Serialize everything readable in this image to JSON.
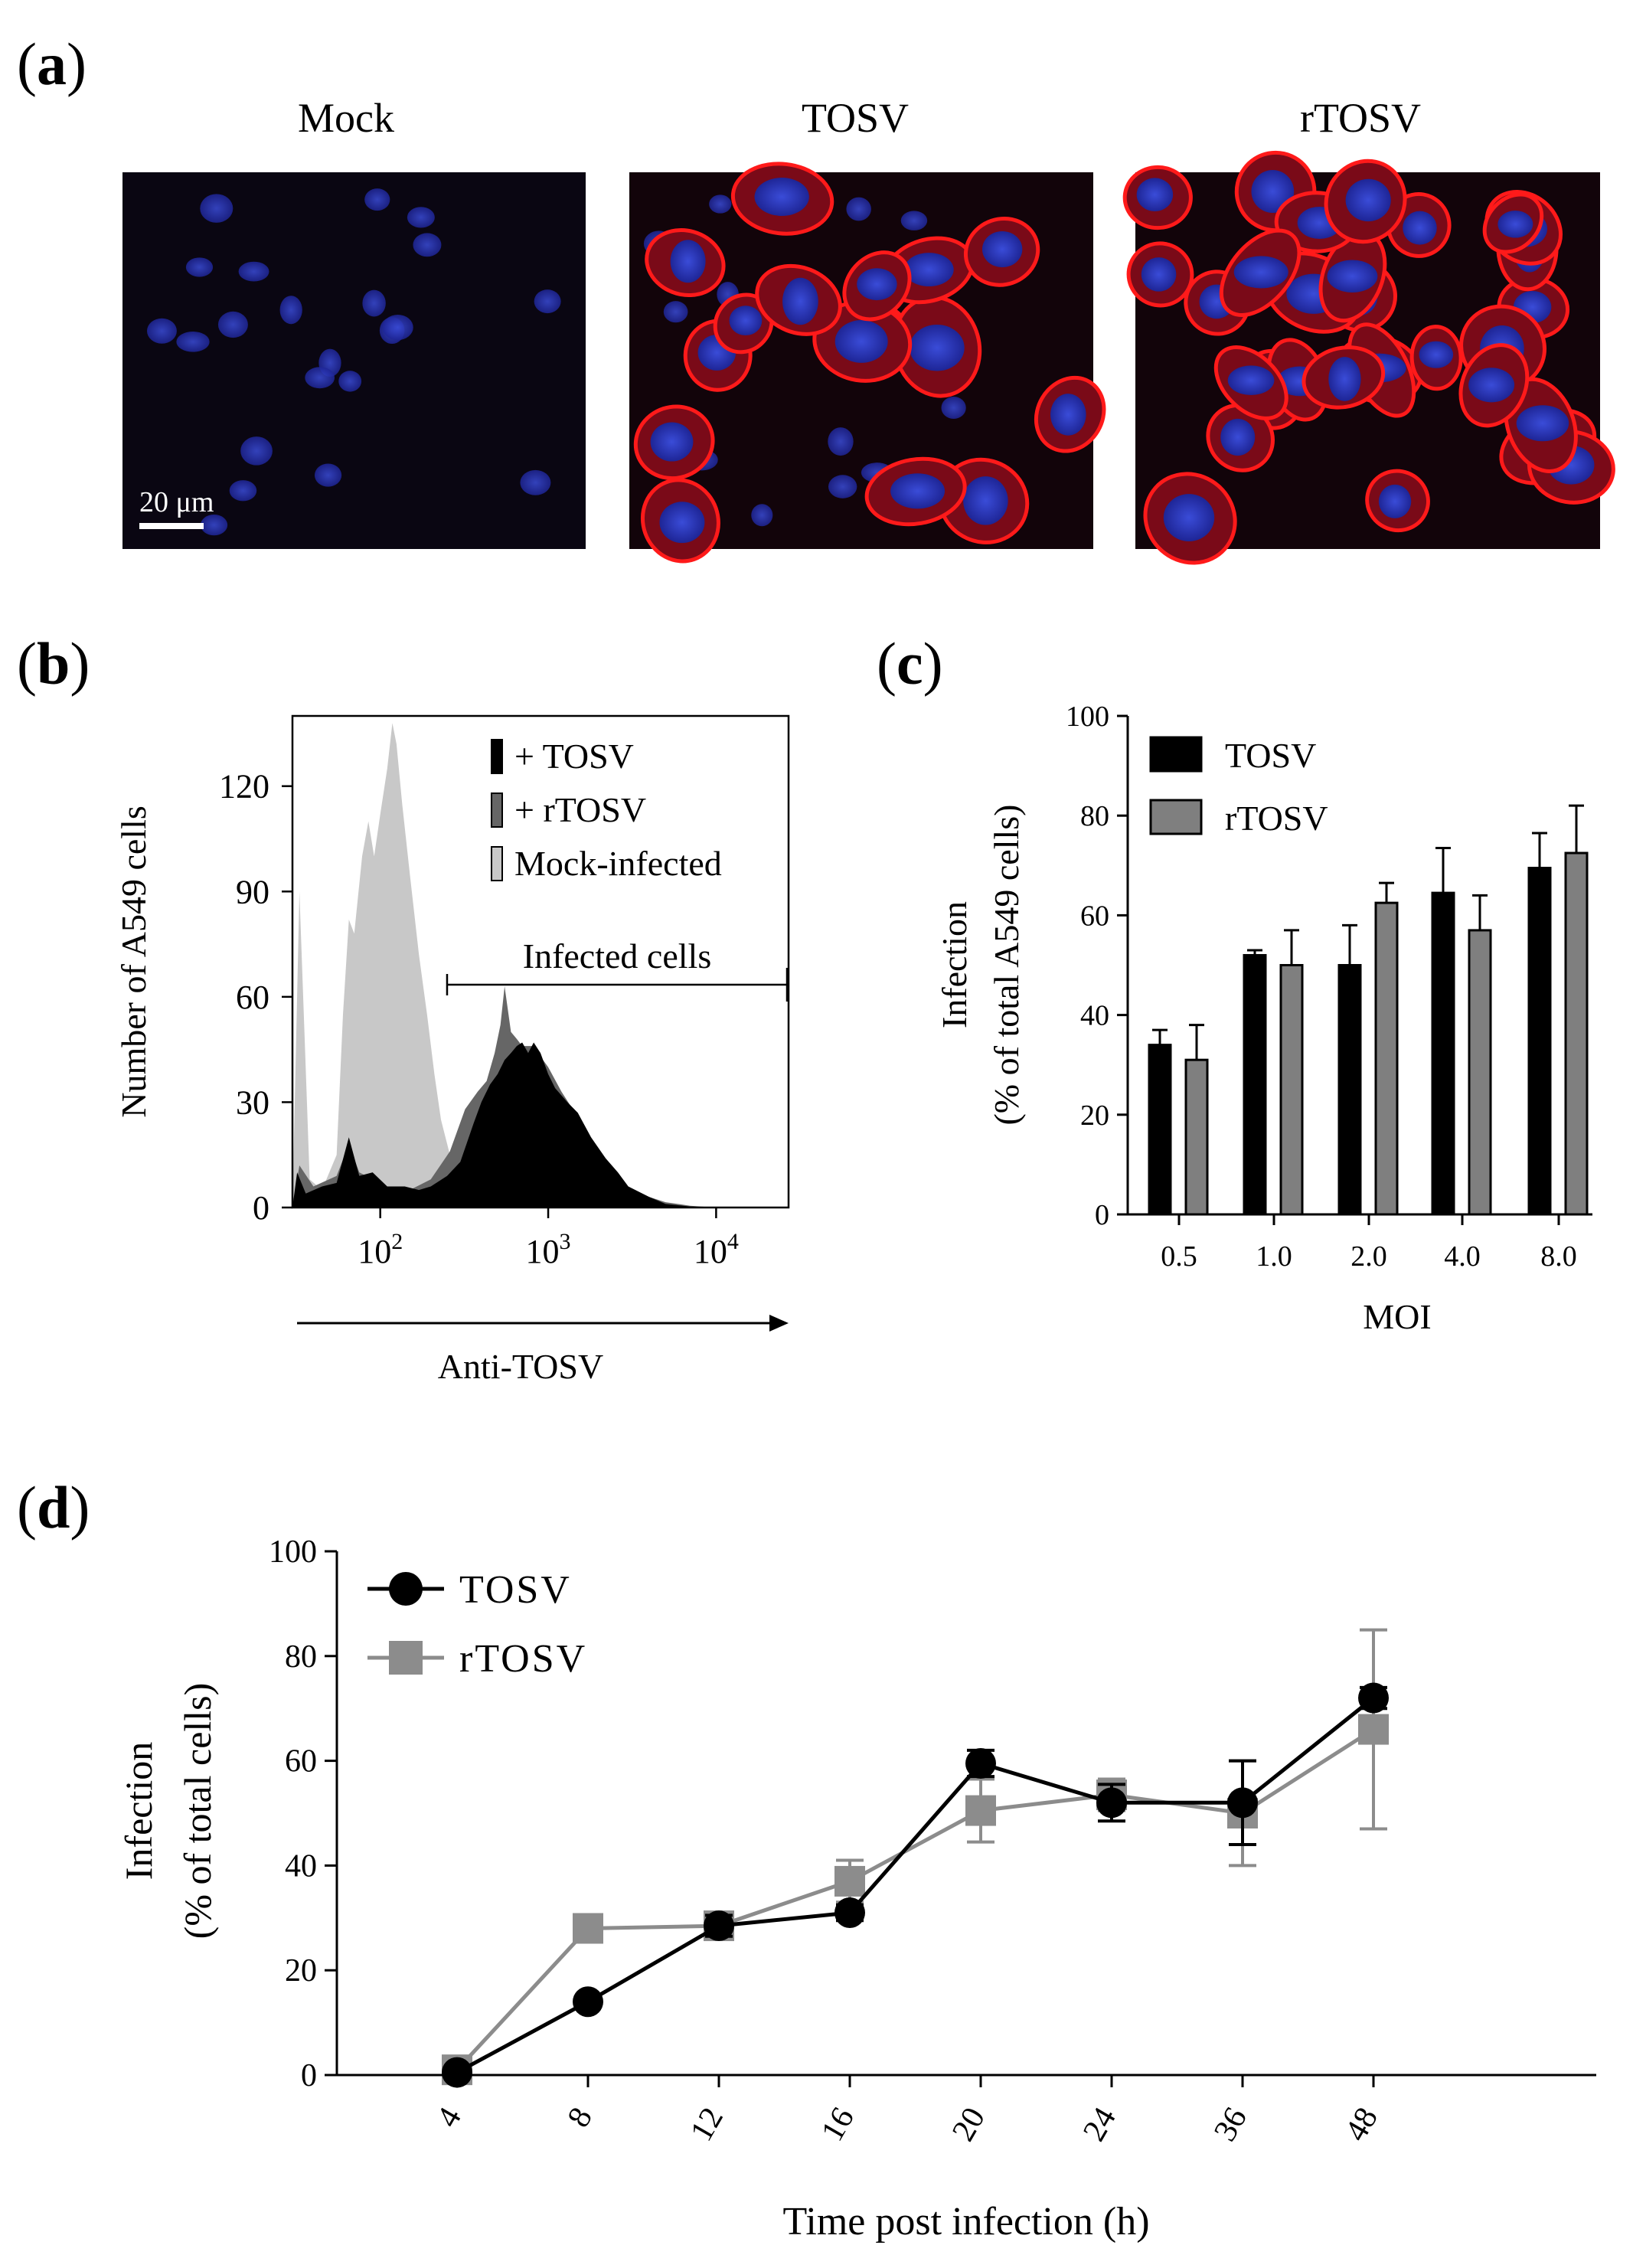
{
  "panel_a": {
    "label": "a",
    "titles": [
      "Mock",
      "TOSV",
      "rTOSV"
    ],
    "scale_bar": "20 μm"
  },
  "chart_data": [
    {
      "panel": "b",
      "type": "area",
      "title": "",
      "xlabel": "Anti-TOSV",
      "ylabel": "Number of A549 cells",
      "x_scale": "log",
      "xlim": [
        30,
        27000
      ],
      "ylim": [
        0,
        140
      ],
      "y_ticks": [
        0,
        30,
        60,
        90,
        120
      ],
      "x_ticks": [
        {
          "value": 100,
          "base": "10",
          "exp": "2"
        },
        {
          "value": 1000,
          "base": "10",
          "exp": "3"
        },
        {
          "value": 10000,
          "base": "10",
          "exp": "4"
        }
      ],
      "gate_label": "Infected cells",
      "gate_range": [
        250,
        27000
      ],
      "legend": [
        "+ TOSV",
        "+ rTOSV",
        "Mock-infected"
      ],
      "legend_position": "top-right",
      "series": [
        {
          "name": "Mock-infected",
          "color": "#c8c8c8",
          "points": [
            [
              30,
              0
            ],
            [
              33,
              90
            ],
            [
              38,
              8
            ],
            [
              45,
              5
            ],
            [
              55,
              15
            ],
            [
              60,
              55
            ],
            [
              65,
              82
            ],
            [
              70,
              78
            ],
            [
              78,
              100
            ],
            [
              85,
              110
            ],
            [
              92,
              100
            ],
            [
              100,
              112
            ],
            [
              110,
              125
            ],
            [
              118,
              138
            ],
            [
              125,
              132
            ],
            [
              135,
              115
            ],
            [
              150,
              95
            ],
            [
              170,
              72
            ],
            [
              190,
              55
            ],
            [
              210,
              38
            ],
            [
              230,
              25
            ],
            [
              260,
              15
            ],
            [
              300,
              9
            ],
            [
              350,
              6
            ],
            [
              400,
              4
            ],
            [
              500,
              2
            ],
            [
              700,
              0.5
            ],
            [
              1000,
              0
            ]
          ]
        },
        {
          "name": "+ rTOSV",
          "color": "#666666",
          "points": [
            [
              30,
              0
            ],
            [
              33,
              12
            ],
            [
              40,
              6
            ],
            [
              55,
              9
            ],
            [
              65,
              18
            ],
            [
              75,
              10
            ],
            [
              90,
              8
            ],
            [
              110,
              5
            ],
            [
              150,
              5
            ],
            [
              200,
              8
            ],
            [
              260,
              16
            ],
            [
              320,
              28
            ],
            [
              380,
              33
            ],
            [
              430,
              36
            ],
            [
              480,
              44
            ],
            [
              520,
              52
            ],
            [
              550,
              63
            ],
            [
              600,
              50
            ],
            [
              650,
              48
            ],
            [
              700,
              46
            ],
            [
              800,
              46
            ],
            [
              900,
              43
            ],
            [
              1000,
              40
            ],
            [
              1200,
              33
            ],
            [
              1400,
              28
            ],
            [
              1700,
              20
            ],
            [
              2000,
              14
            ],
            [
              2500,
              8
            ],
            [
              3000,
              5
            ],
            [
              4000,
              3
            ],
            [
              5000,
              1.5
            ],
            [
              7000,
              0.5
            ],
            [
              10000,
              0
            ]
          ]
        },
        {
          "name": "+ TOSV",
          "color": "#000000",
          "points": [
            [
              30,
              0
            ],
            [
              32,
              10
            ],
            [
              36,
              4
            ],
            [
              45,
              6
            ],
            [
              55,
              7
            ],
            [
              65,
              20
            ],
            [
              75,
              9
            ],
            [
              90,
              10
            ],
            [
              110,
              6
            ],
            [
              140,
              6
            ],
            [
              170,
              5
            ],
            [
              200,
              6
            ],
            [
              250,
              9
            ],
            [
              300,
              13
            ],
            [
              360,
              24
            ],
            [
              400,
              30
            ],
            [
              450,
              35
            ],
            [
              500,
              38
            ],
            [
              550,
              42
            ],
            [
              600,
              44
            ],
            [
              650,
              46
            ],
            [
              700,
              47
            ],
            [
              760,
              44
            ],
            [
              820,
              47
            ],
            [
              900,
              44
            ],
            [
              1000,
              38
            ],
            [
              1100,
              34
            ],
            [
              1300,
              30
            ],
            [
              1500,
              27
            ],
            [
              1800,
              20
            ],
            [
              2200,
              14
            ],
            [
              2600,
              10
            ],
            [
              3000,
              6
            ],
            [
              4000,
              3
            ],
            [
              5000,
              1
            ],
            [
              7000,
              0.3
            ],
            [
              10000,
              0
            ]
          ]
        }
      ]
    },
    {
      "panel": "c",
      "type": "bar",
      "title": "",
      "xlabel": "MOI",
      "ylabel": [
        "Infection",
        "(% of total A549 cells)"
      ],
      "ylim": [
        0,
        100
      ],
      "y_ticks": [
        0,
        20,
        40,
        60,
        80,
        100
      ],
      "categories": [
        "0.5",
        "1.0",
        "2.0",
        "4.0",
        "8.0"
      ],
      "legend_position": "top-left",
      "series": [
        {
          "name": "TOSV",
          "color": "#000000",
          "values": [
            34,
            52,
            50,
            64.5,
            69.5
          ],
          "errors": [
            3,
            1,
            8,
            9,
            7
          ]
        },
        {
          "name": "rTOSV",
          "color": "#7f7f7f",
          "values": [
            31,
            50,
            62.5,
            57,
            72.5
          ],
          "errors": [
            7,
            7,
            4,
            7,
            9.5
          ]
        }
      ]
    },
    {
      "panel": "d",
      "type": "line",
      "title": "",
      "xlabel": "Time post infection (h)",
      "ylabel": [
        "Infection",
        "(% of total cells)"
      ],
      "ylim": [
        0,
        100
      ],
      "y_ticks": [
        0,
        20,
        40,
        60,
        80,
        100
      ],
      "categories": [
        "4",
        "8",
        "12",
        "16",
        "20",
        "24",
        "36",
        "48"
      ],
      "legend_position": "top-left",
      "series": [
        {
          "name": "TOSV",
          "color": "#000000",
          "marker": "circle",
          "values": [
            0.5,
            14,
            28.5,
            31,
            59.5,
            52,
            52,
            72
          ],
          "errors": [
            0.5,
            1,
            2,
            1.5,
            2.5,
            3.5,
            8,
            2
          ]
        },
        {
          "name": "rTOSV",
          "color": "#8c8c8c",
          "marker": "square",
          "values": [
            1,
            28,
            28.5,
            37,
            50.5,
            53.5,
            50,
            66
          ],
          "errors": [
            0.5,
            0.5,
            1,
            4,
            6,
            3,
            10,
            19
          ]
        }
      ]
    }
  ]
}
